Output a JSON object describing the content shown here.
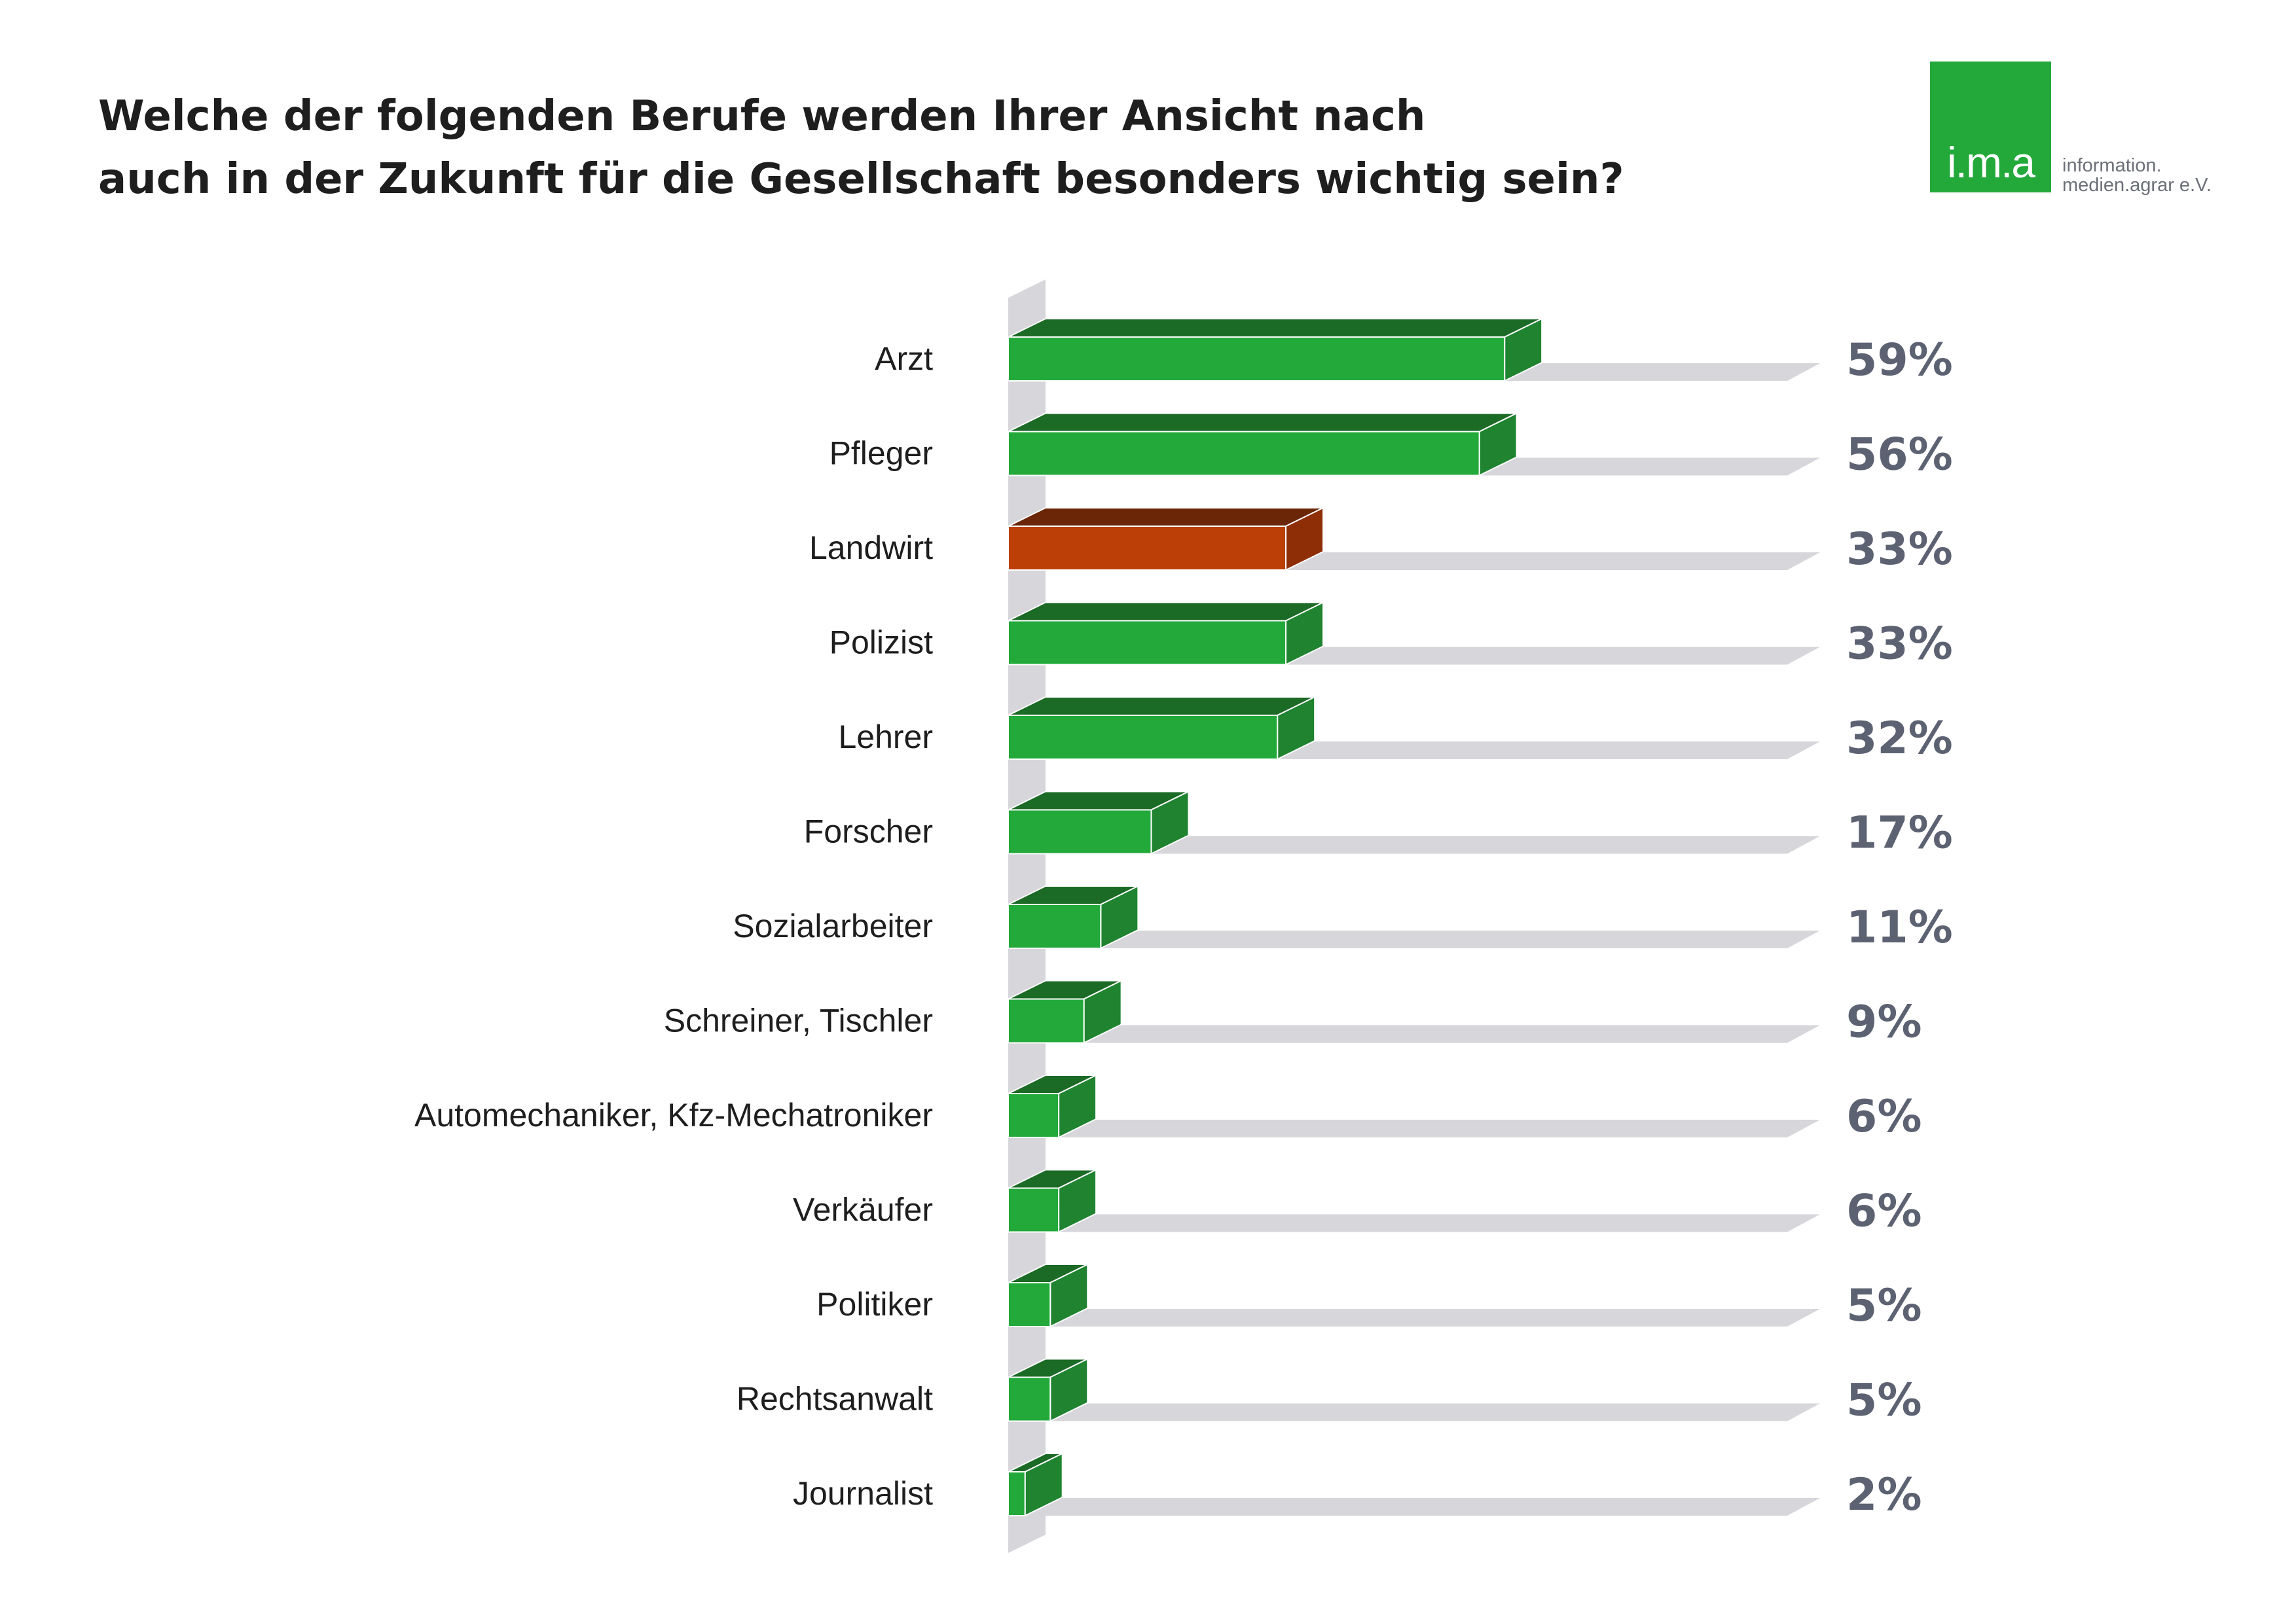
{
  "title_lines": [
    "Welche der folgenden Berufe werden Ihrer Ansicht nach",
    "auch in der Zukunft für die Gesellschaft besonders wichtig sein?"
  ],
  "logo": {
    "mark": "i.m.a",
    "tagline_lines": [
      "information.",
      "medien.agrar e.V."
    ]
  },
  "colors": {
    "bar_front": "#22a93a",
    "bar_top": "#1b6a25",
    "bar_side": "#1f8330",
    "highlight_front": "#bd3f08",
    "highlight_top": "#6b2607",
    "highlight_side": "#8e2e06",
    "track": "#d6d6db",
    "value_text": "#5d6272"
  },
  "chart_data": {
    "type": "bar",
    "orientation": "horizontal",
    "unit": "%",
    "xlim": [
      0,
      100
    ],
    "highlight_category": "Landwirt",
    "categories": [
      "Arzt",
      "Pfleger",
      "Landwirt",
      "Polizist",
      "Lehrer",
      "Forscher",
      "Sozialarbeiter",
      "Schreiner, Tischler",
      "Automechaniker, Kfz-Mechatroniker",
      "Verkäufer",
      "Politiker",
      "Rechtsanwalt",
      "Journalist"
    ],
    "values": [
      59,
      56,
      33,
      33,
      32,
      17,
      11,
      9,
      6,
      6,
      5,
      5,
      2
    ],
    "value_labels": [
      "59%",
      "56%",
      "33%",
      "33%",
      "32%",
      "17%",
      "11%",
      "9%",
      "6%",
      "6%",
      "5%",
      "5%",
      "2%"
    ]
  }
}
